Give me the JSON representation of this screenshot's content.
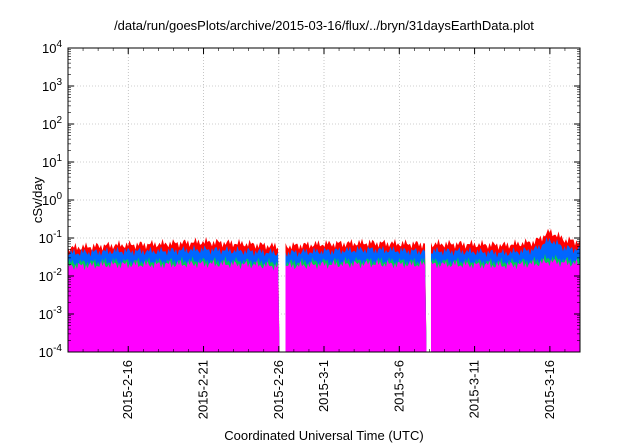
{
  "chart_data": {
    "type": "area",
    "title": "/data/run/goesPlots/archive/2015-03-16/flux/../bryn/31daysEarthData.plot",
    "xlabel": "Coordinated Universal Time (UTC)",
    "ylabel": "cSv/day",
    "yscale": "log",
    "ylim": [
      0.0001,
      10000
    ],
    "xlim": [
      "2015-02-12",
      "2015-03-18"
    ],
    "y_ticks": [
      {
        "value": 0.0001,
        "base": "10",
        "exp": "-4"
      },
      {
        "value": 0.001,
        "base": "10",
        "exp": "-3"
      },
      {
        "value": 0.01,
        "base": "10",
        "exp": "-2"
      },
      {
        "value": 0.1,
        "base": "10",
        "exp": "-1"
      },
      {
        "value": 1,
        "base": "10",
        "exp": "0"
      },
      {
        "value": 10,
        "base": "10",
        "exp": "1"
      },
      {
        "value": 100,
        "base": "10",
        "exp": "2"
      },
      {
        "value": 1000,
        "base": "10",
        "exp": "3"
      },
      {
        "value": 10000,
        "base": "10",
        "exp": "4"
      }
    ],
    "x_ticks": [
      {
        "date": "2015-02-16",
        "label": "2015-2-16"
      },
      {
        "date": "2015-02-21",
        "label": "2015-2-21"
      },
      {
        "date": "2015-02-26",
        "label": "2015-2-26"
      },
      {
        "date": "2015-03-01",
        "label": "2015-3-1"
      },
      {
        "date": "2015-03-06",
        "label": "2015-3-6"
      },
      {
        "date": "2015-03-11",
        "label": "2015-3-11"
      },
      {
        "date": "2015-03-16",
        "label": "2015-3-16"
      }
    ],
    "grid": true,
    "series": [
      {
        "color": "#ff0000",
        "date": [
          "2015-02-12",
          "2015-02-15",
          "2015-02-18",
          "2015-02-21",
          "2015-02-24",
          "2015-02-26",
          "2015-03-01",
          "2015-03-04",
          "2015-03-07",
          "2015-03-10",
          "2015-03-13",
          "2015-03-15",
          "2015-03-16",
          "2015-03-17",
          "2015-03-18"
        ],
        "value": [
          0.055,
          0.065,
          0.07,
          0.08,
          0.07,
          0.06,
          0.07,
          0.075,
          0.07,
          0.07,
          0.065,
          0.08,
          0.15,
          0.09,
          0.08
        ]
      },
      {
        "color": "#0066ff",
        "date": [
          "2015-02-12",
          "2015-02-15",
          "2015-02-18",
          "2015-02-21",
          "2015-02-24",
          "2015-02-26",
          "2015-03-01",
          "2015-03-04",
          "2015-03-07",
          "2015-03-10",
          "2015-03-13",
          "2015-03-15",
          "2015-03-16",
          "2015-03-17",
          "2015-03-18"
        ],
        "value": [
          0.04,
          0.045,
          0.045,
          0.05,
          0.045,
          0.04,
          0.045,
          0.05,
          0.045,
          0.045,
          0.04,
          0.05,
          0.09,
          0.055,
          0.05
        ]
      },
      {
        "color": "#00cc55",
        "date": [
          "2015-02-12",
          "2015-02-15",
          "2015-02-18",
          "2015-02-21",
          "2015-02-24",
          "2015-02-26",
          "2015-03-01",
          "2015-03-04",
          "2015-03-07",
          "2015-03-10",
          "2015-03-13",
          "2015-03-15",
          "2015-03-16",
          "2015-03-17",
          "2015-03-18"
        ],
        "value": [
          0.022,
          0.024,
          0.024,
          0.025,
          0.024,
          0.022,
          0.024,
          0.025,
          0.024,
          0.024,
          0.023,
          0.025,
          0.03,
          0.026,
          0.025
        ]
      },
      {
        "color": "#ff00ff",
        "date": [
          "2015-02-12",
          "2015-02-15",
          "2015-02-18",
          "2015-02-21",
          "2015-02-24",
          "2015-02-26",
          "2015-03-01",
          "2015-03-04",
          "2015-03-07",
          "2015-03-10",
          "2015-03-13",
          "2015-03-15",
          "2015-03-16",
          "2015-03-17",
          "2015-03-18"
        ],
        "value": [
          0.018,
          0.02,
          0.02,
          0.021,
          0.02,
          0.018,
          0.02,
          0.021,
          0.02,
          0.02,
          0.019,
          0.021,
          0.024,
          0.022,
          0.021
        ]
      }
    ],
    "data_gaps": [
      [
        "2015-02-26",
        "2015-02-26T10:00"
      ],
      [
        "2015-03-07T18:00",
        "2015-03-08T02:00"
      ]
    ],
    "low_dips": [
      "2015-02-16T12:00",
      "2015-02-19",
      "2015-02-26T18:00",
      "2015-02-27T06:00",
      "2015-03-04T12:00",
      "2015-03-05T12:00",
      "2015-03-06T06:00",
      "2015-03-06T12:00",
      "2015-03-07",
      "2015-03-08T18:00",
      "2015-03-09T06:00",
      "2015-03-13T06:00"
    ]
  }
}
